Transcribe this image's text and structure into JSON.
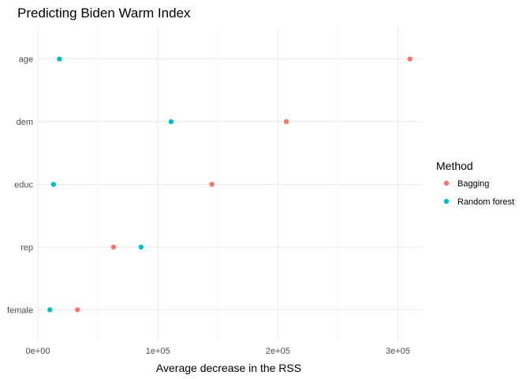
{
  "chart_data": {
    "type": "scatter",
    "title": "Predicting Biden Warm Index",
    "xlabel": "Average decrease in the RSS",
    "ylabel": "",
    "xlim": [
      0,
      320000
    ],
    "x_ticks": [
      0,
      100000,
      200000,
      300000
    ],
    "x_tick_labels": [
      "0e+00",
      "1e+05",
      "2e+05",
      "3e+05"
    ],
    "categories": [
      "age",
      "dem",
      "educ",
      "rep",
      "female"
    ],
    "grid": true,
    "legend": {
      "title": "Method",
      "placement": "right"
    },
    "series": [
      {
        "name": "Bagging",
        "color": "#F8766D",
        "values": [
          310000,
          207000,
          145000,
          63000,
          33000
        ]
      },
      {
        "name": "Random forest",
        "color": "#00BFC4",
        "values": [
          18000,
          111000,
          13000,
          86000,
          10000
        ]
      }
    ]
  }
}
